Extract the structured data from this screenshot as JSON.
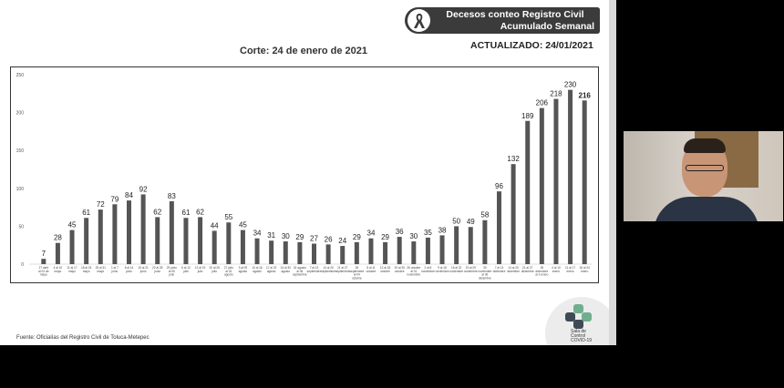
{
  "slide": {
    "banner_line1": "Decesos conteo Registro Civil",
    "banner_line2": "Acumulado Semanal",
    "updated": "ACTUALIZADO: 24/01/2021",
    "corte": "Corte: 24 de enero de 2021",
    "source": "Fuente: Oficialías del Registro Civil de Toluca-Metepec",
    "logo_text": [
      "Sala de",
      "Control",
      "COVID-19"
    ]
  },
  "colors": {
    "bar": "#555555",
    "banner": "#3b3b3b",
    "logo_green": "#6fae8f",
    "logo_dark": "#3f4a55"
  },
  "chart_data": {
    "type": "bar",
    "title": "",
    "xlabel": "",
    "ylabel": "",
    "ylim": [
      0,
      250
    ],
    "yticks": [
      0,
      50,
      100,
      150,
      200,
      250
    ],
    "grid": false,
    "categories": [
      "27 abril al 03 de mayo",
      "4 al 10 mayo",
      "11 al 17 mayo",
      "18 al 24 mayo",
      "25 al 31 mayo",
      "1 al 7 junio",
      "8 al 14 junio",
      "15 al 21 junio",
      "22 al 28 junio",
      "29 junio al 05 julio",
      "6 al 12 julio",
      "13 al 19 julio",
      "20 al 26 julio",
      "27 julio al 02 agosto",
      "3 al 09 agosto",
      "10 al 16 agosto",
      "17 al 23 agosto",
      "24 al 30 agosto",
      "31 agosto al 06 septiembre",
      "7 al 13 septiembre",
      "14 al 20 septiembre",
      "21 al 27 septiembre",
      "28 septiembre al 04 octubre",
      "5 al 11 octubre",
      "12 al 18 octubre",
      "19 al 25 octubre",
      "26 octubre al 01 noviembre",
      "2 al 8 noviembre",
      "9 al 15 noviembre",
      "16 al 22 noviembre",
      "23 al 29 noviembre",
      "30 noviembre al 06 diciembre",
      "7 al 13 diciembre",
      "14 al 20 diciembre",
      "21 al 27 diciembre",
      "28 diciembre al 3 enero",
      "4 al 10 enero",
      "11 al 17 enero",
      "18 al 24 enero"
    ],
    "values": [
      7,
      28,
      45,
      61,
      72,
      79,
      84,
      92,
      62,
      83,
      61,
      62,
      44,
      55,
      45,
      34,
      31,
      30,
      29,
      27,
      26,
      24,
      29,
      34,
      29,
      36,
      30,
      35,
      38,
      50,
      49,
      58,
      96,
      132,
      189,
      206,
      218,
      230,
      216
    ],
    "highlight_last_label": true
  }
}
